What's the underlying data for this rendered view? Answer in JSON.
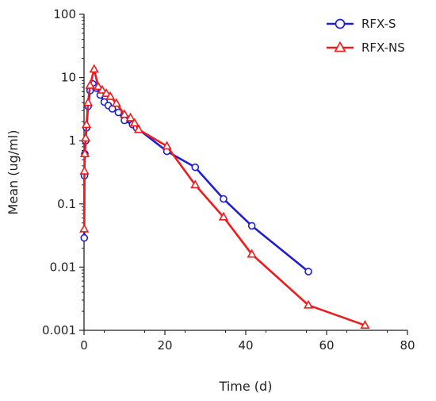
{
  "chart_data": {
    "type": "line",
    "title": "",
    "xlabel": "Time (d)",
    "ylabel": "Mean (ug/ml)",
    "xlim": [
      0,
      80
    ],
    "ylim": [
      0.001,
      100
    ],
    "yscale": "log",
    "x_ticks": [
      "0",
      "20",
      "40",
      "60",
      "80"
    ],
    "y_ticks": [
      "0.001",
      "0.01",
      "0.1",
      "1",
      "10",
      "100"
    ],
    "grid": false,
    "legend_position": "top-right",
    "series": [
      {
        "name": "RFX-S",
        "color": "#1f1fd0",
        "marker": "circle",
        "x": [
          0.05,
          0.1,
          0.2,
          0.4,
          0.6,
          1.0,
          1.5,
          2.2,
          3.0,
          4.0,
          5.0,
          6.0,
          7.0,
          8.5,
          10.0,
          12.0,
          13.0,
          20.5,
          27.5,
          34.5,
          41.5,
          55.5
        ],
        "y": [
          0.029,
          0.28,
          0.62,
          1.0,
          1.6,
          3.5,
          6.2,
          7.9,
          6.8,
          5.3,
          4.1,
          3.6,
          3.2,
          2.8,
          2.1,
          1.8,
          1.6,
          0.68,
          0.38,
          0.12,
          0.045,
          0.0085
        ]
      },
      {
        "name": "RFX-NS",
        "color": "#ee1c1c",
        "marker": "triangle",
        "x": [
          0.05,
          0.1,
          0.2,
          0.4,
          0.6,
          1.0,
          1.5,
          2.5,
          3.5,
          4.5,
          5.5,
          6.5,
          8.0,
          10.0,
          11.5,
          12.5,
          13.5,
          20.5,
          27.5,
          34.5,
          41.5,
          55.5,
          69.5
        ],
        "y": [
          0.04,
          0.33,
          0.62,
          1.1,
          1.8,
          4.0,
          7.5,
          13.5,
          7.2,
          6.3,
          5.6,
          5.0,
          3.9,
          2.6,
          2.3,
          1.9,
          1.5,
          0.82,
          0.2,
          0.062,
          0.016,
          0.0025,
          0.0012
        ]
      }
    ]
  }
}
